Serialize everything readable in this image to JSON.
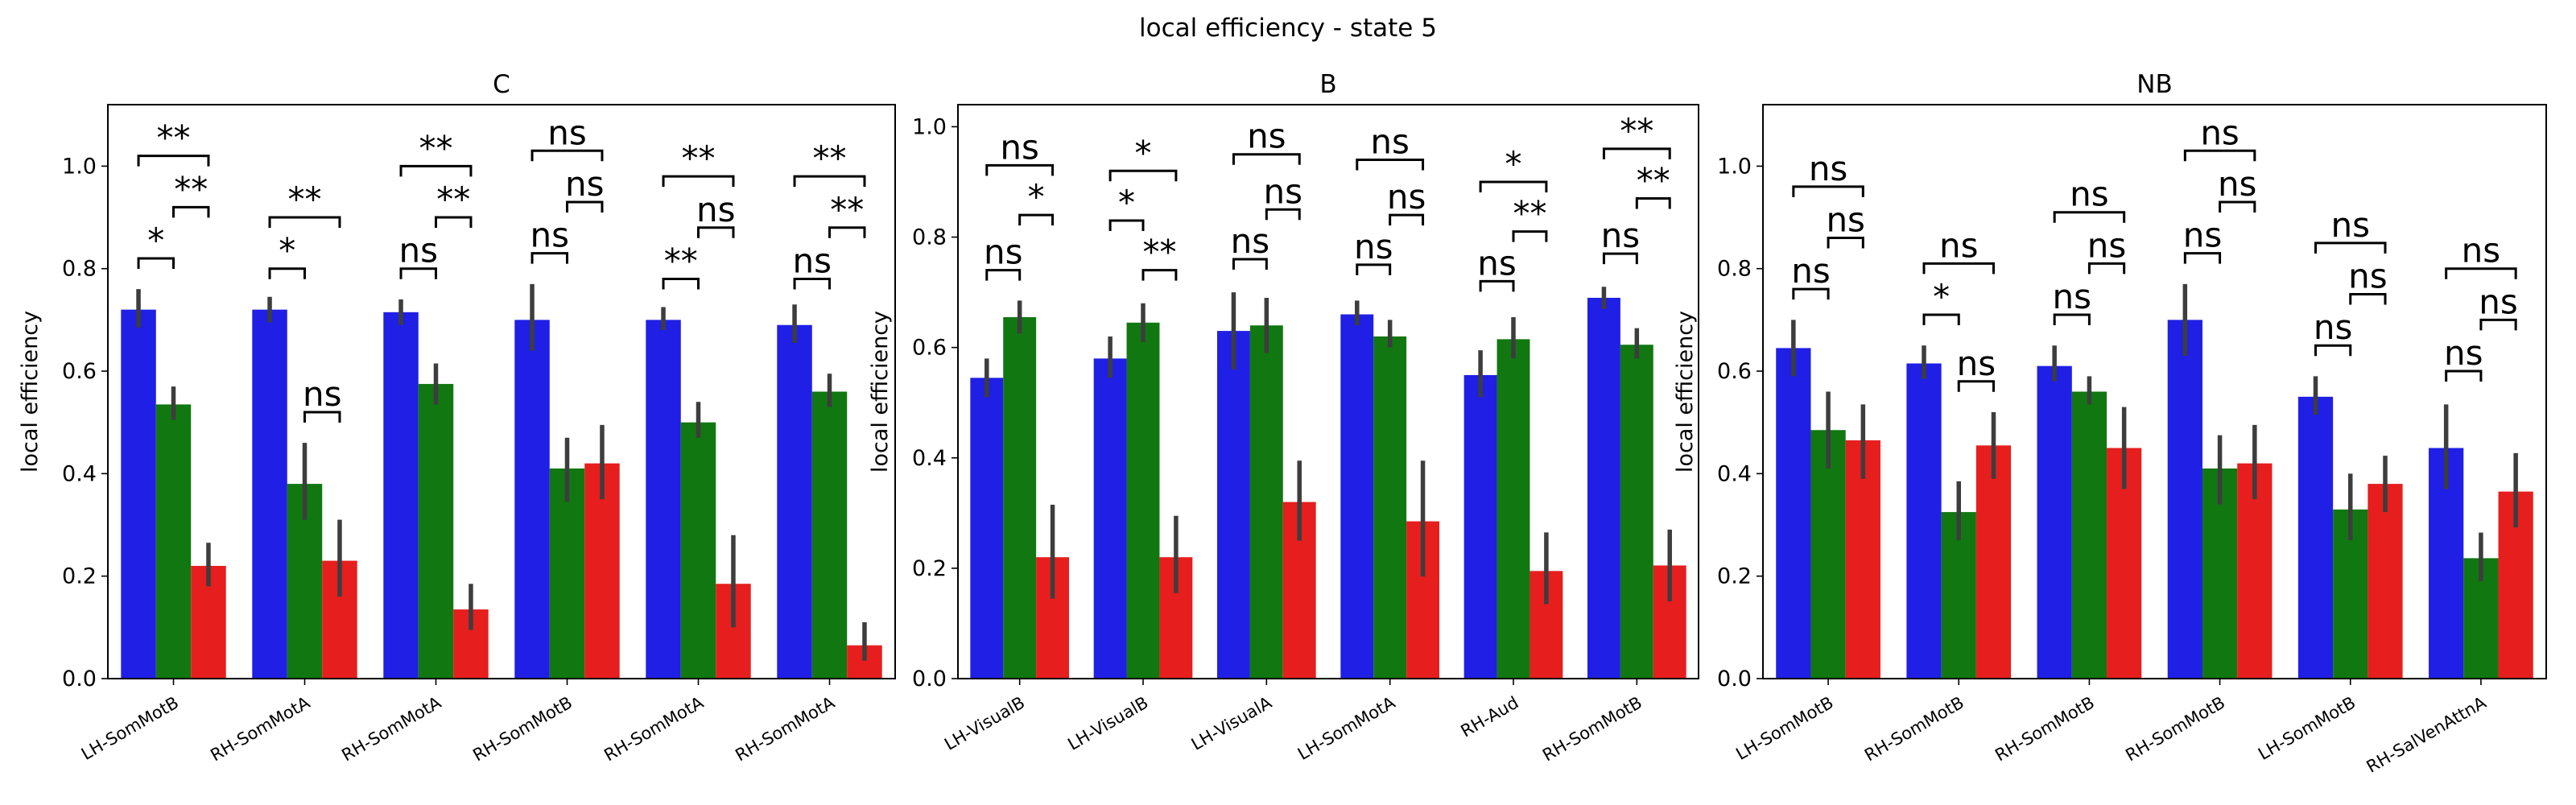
{
  "figure": {
    "suptitle": "local efficiency - state 5"
  },
  "chart_data": [
    {
      "type": "bar",
      "title": "C",
      "ylabel": "local efficiency",
      "xlabel": "",
      "ylim": [
        0,
        1.12
      ],
      "yticks": [
        "0.0",
        "0.2",
        "0.4",
        "0.6",
        "0.8",
        "1.0"
      ],
      "categories": [
        "LH-SomMotB",
        "RH-SomMotA",
        "RH-SomMotA",
        "RH-SomMotB",
        "RH-SomMotA",
        "RH-SomMotA"
      ],
      "series": [
        {
          "color": "#1f1fe6",
          "values": [
            0.72,
            0.72,
            0.715,
            0.7,
            0.7,
            0.69
          ],
          "err_low": [
            0.685,
            0.695,
            0.69,
            0.64,
            0.68,
            0.655
          ],
          "err_high": [
            0.76,
            0.745,
            0.74,
            0.77,
            0.725,
            0.73
          ]
        },
        {
          "color": "#117711",
          "values": [
            0.535,
            0.38,
            0.575,
            0.41,
            0.5,
            0.56
          ],
          "err_low": [
            0.505,
            0.31,
            0.535,
            0.345,
            0.47,
            0.53
          ],
          "err_high": [
            0.57,
            0.46,
            0.615,
            0.47,
            0.54,
            0.595
          ]
        },
        {
          "color": "#e61e1e",
          "values": [
            0.22,
            0.23,
            0.135,
            0.42,
            0.185,
            0.065
          ],
          "err_low": [
            0.18,
            0.16,
            0.095,
            0.35,
            0.1,
            0.035
          ],
          "err_high": [
            0.265,
            0.31,
            0.185,
            0.495,
            0.28,
            0.11
          ]
        }
      ],
      "significance": [
        [
          {
            "label": "*",
            "pair": [
              0,
              1
            ],
            "y": 0.82
          },
          {
            "label": "**",
            "pair": [
              1,
              2
            ],
            "y": 0.92
          },
          {
            "label": "**",
            "pair": [
              0,
              2
            ],
            "y": 1.02
          }
        ],
        [
          {
            "label": "*",
            "pair": [
              0,
              1
            ],
            "y": 0.8
          },
          {
            "label": "ns",
            "pair": [
              1,
              2
            ],
            "y": 0.52
          },
          {
            "label": "**",
            "pair": [
              0,
              2
            ],
            "y": 0.9
          }
        ],
        [
          {
            "label": "ns",
            "pair": [
              0,
              1
            ],
            "y": 0.8
          },
          {
            "label": "**",
            "pair": [
              1,
              2
            ],
            "y": 0.9
          },
          {
            "label": "**",
            "pair": [
              0,
              2
            ],
            "y": 1.0
          }
        ],
        [
          {
            "label": "ns",
            "pair": [
              0,
              1
            ],
            "y": 0.83
          },
          {
            "label": "ns",
            "pair": [
              1,
              2
            ],
            "y": 0.93
          },
          {
            "label": "ns",
            "pair": [
              0,
              2
            ],
            "y": 1.03
          }
        ],
        [
          {
            "label": "**",
            "pair": [
              0,
              1
            ],
            "y": 0.78
          },
          {
            "label": "ns",
            "pair": [
              1,
              2
            ],
            "y": 0.88
          },
          {
            "label": "**",
            "pair": [
              0,
              2
            ],
            "y": 0.98
          }
        ],
        [
          {
            "label": "ns",
            "pair": [
              0,
              1
            ],
            "y": 0.78
          },
          {
            "label": "**",
            "pair": [
              1,
              2
            ],
            "y": 0.88
          },
          {
            "label": "**",
            "pair": [
              0,
              2
            ],
            "y": 0.98
          }
        ]
      ]
    },
    {
      "type": "bar",
      "title": "B",
      "ylabel": "local efficiency",
      "xlabel": "",
      "ylim": [
        0,
        1.04
      ],
      "yticks": [
        "0.0",
        "0.2",
        "0.4",
        "0.6",
        "0.8",
        "1.0"
      ],
      "categories": [
        "LH-VisualB",
        "LH-VisualB",
        "LH-VisualA",
        "LH-SomMotA",
        "RH-Aud",
        "RH-SomMotB"
      ],
      "series": [
        {
          "color": "#1f1fe6",
          "values": [
            0.545,
            0.58,
            0.63,
            0.66,
            0.55,
            0.69
          ],
          "err_low": [
            0.51,
            0.545,
            0.56,
            0.64,
            0.51,
            0.67
          ],
          "err_high": [
            0.58,
            0.62,
            0.7,
            0.685,
            0.595,
            0.71
          ]
        },
        {
          "color": "#117711",
          "values": [
            0.655,
            0.645,
            0.64,
            0.62,
            0.615,
            0.605
          ],
          "err_low": [
            0.625,
            0.61,
            0.59,
            0.6,
            0.58,
            0.58
          ],
          "err_high": [
            0.685,
            0.68,
            0.69,
            0.65,
            0.655,
            0.635
          ]
        },
        {
          "color": "#e61e1e",
          "values": [
            0.22,
            0.22,
            0.32,
            0.285,
            0.195,
            0.205
          ],
          "err_low": [
            0.145,
            0.155,
            0.25,
            0.185,
            0.135,
            0.14
          ],
          "err_high": [
            0.315,
            0.295,
            0.395,
            0.395,
            0.265,
            0.27
          ]
        }
      ],
      "significance": [
        [
          {
            "label": "ns",
            "pair": [
              0,
              1
            ],
            "y": 0.74
          },
          {
            "label": "*",
            "pair": [
              1,
              2
            ],
            "y": 0.84
          },
          {
            "label": "ns",
            "pair": [
              0,
              2
            ],
            "y": 0.93
          }
        ],
        [
          {
            "label": "*",
            "pair": [
              0,
              1
            ],
            "y": 0.83
          },
          {
            "label": "**",
            "pair": [
              1,
              2
            ],
            "y": 0.74
          },
          {
            "label": "*",
            "pair": [
              0,
              2
            ],
            "y": 0.92
          }
        ],
        [
          {
            "label": "ns",
            "pair": [
              0,
              1
            ],
            "y": 0.76
          },
          {
            "label": "ns",
            "pair": [
              1,
              2
            ],
            "y": 0.85
          },
          {
            "label": "ns",
            "pair": [
              0,
              2
            ],
            "y": 0.95
          }
        ],
        [
          {
            "label": "ns",
            "pair": [
              0,
              1
            ],
            "y": 0.75
          },
          {
            "label": "ns",
            "pair": [
              1,
              2
            ],
            "y": 0.84
          },
          {
            "label": "ns",
            "pair": [
              0,
              2
            ],
            "y": 0.94
          }
        ],
        [
          {
            "label": "ns",
            "pair": [
              0,
              1
            ],
            "y": 0.72
          },
          {
            "label": "**",
            "pair": [
              1,
              2
            ],
            "y": 0.81
          },
          {
            "label": "*",
            "pair": [
              0,
              2
            ],
            "y": 0.9
          }
        ],
        [
          {
            "label": "ns",
            "pair": [
              0,
              1
            ],
            "y": 0.77
          },
          {
            "label": "**",
            "pair": [
              1,
              2
            ],
            "y": 0.87
          },
          {
            "label": "**",
            "pair": [
              0,
              2
            ],
            "y": 0.96
          }
        ]
      ]
    },
    {
      "type": "bar",
      "title": "NB",
      "ylabel": "local efficiency",
      "xlabel": "",
      "ylim": [
        0,
        1.12
      ],
      "yticks": [
        "0.0",
        "0.2",
        "0.4",
        "0.6",
        "0.8",
        "1.0"
      ],
      "categories": [
        "LH-SomMotB",
        "RH-SomMotB",
        "RH-SomMotB",
        "RH-SomMotB",
        "LH-SomMotB",
        "RH-SalVenAttnA"
      ],
      "series": [
        {
          "color": "#1f1fe6",
          "values": [
            0.645,
            0.615,
            0.61,
            0.7,
            0.55,
            0.45
          ],
          "err_low": [
            0.59,
            0.585,
            0.58,
            0.63,
            0.515,
            0.37
          ],
          "err_high": [
            0.7,
            0.65,
            0.65,
            0.77,
            0.59,
            0.535
          ]
        },
        {
          "color": "#117711",
          "values": [
            0.485,
            0.325,
            0.56,
            0.41,
            0.33,
            0.235
          ],
          "err_low": [
            0.41,
            0.27,
            0.535,
            0.34,
            0.27,
            0.19
          ],
          "err_high": [
            0.56,
            0.385,
            0.59,
            0.475,
            0.4,
            0.285
          ]
        },
        {
          "color": "#e61e1e",
          "values": [
            0.465,
            0.455,
            0.45,
            0.42,
            0.38,
            0.365
          ],
          "err_low": [
            0.39,
            0.39,
            0.37,
            0.35,
            0.325,
            0.295
          ],
          "err_high": [
            0.535,
            0.52,
            0.53,
            0.495,
            0.435,
            0.44
          ]
        }
      ],
      "significance": [
        [
          {
            "label": "ns",
            "pair": [
              0,
              1
            ],
            "y": 0.76
          },
          {
            "label": "ns",
            "pair": [
              1,
              2
            ],
            "y": 0.86
          },
          {
            "label": "ns",
            "pair": [
              0,
              2
            ],
            "y": 0.96
          }
        ],
        [
          {
            "label": "*",
            "pair": [
              0,
              1
            ],
            "y": 0.71
          },
          {
            "label": "ns",
            "pair": [
              1,
              2
            ],
            "y": 0.58
          },
          {
            "label": "ns",
            "pair": [
              0,
              2
            ],
            "y": 0.81
          }
        ],
        [
          {
            "label": "ns",
            "pair": [
              0,
              1
            ],
            "y": 0.71
          },
          {
            "label": "ns",
            "pair": [
              1,
              2
            ],
            "y": 0.81
          },
          {
            "label": "ns",
            "pair": [
              0,
              2
            ],
            "y": 0.91
          }
        ],
        [
          {
            "label": "ns",
            "pair": [
              0,
              1
            ],
            "y": 0.83
          },
          {
            "label": "ns",
            "pair": [
              1,
              2
            ],
            "y": 0.93
          },
          {
            "label": "ns",
            "pair": [
              0,
              2
            ],
            "y": 1.03
          }
        ],
        [
          {
            "label": "ns",
            "pair": [
              0,
              1
            ],
            "y": 0.65
          },
          {
            "label": "ns",
            "pair": [
              1,
              2
            ],
            "y": 0.75
          },
          {
            "label": "ns",
            "pair": [
              0,
              2
            ],
            "y": 0.85
          }
        ],
        [
          {
            "label": "ns",
            "pair": [
              0,
              1
            ],
            "y": 0.6
          },
          {
            "label": "ns",
            "pair": [
              1,
              2
            ],
            "y": 0.7
          },
          {
            "label": "ns",
            "pair": [
              0,
              2
            ],
            "y": 0.8
          }
        ]
      ]
    }
  ]
}
